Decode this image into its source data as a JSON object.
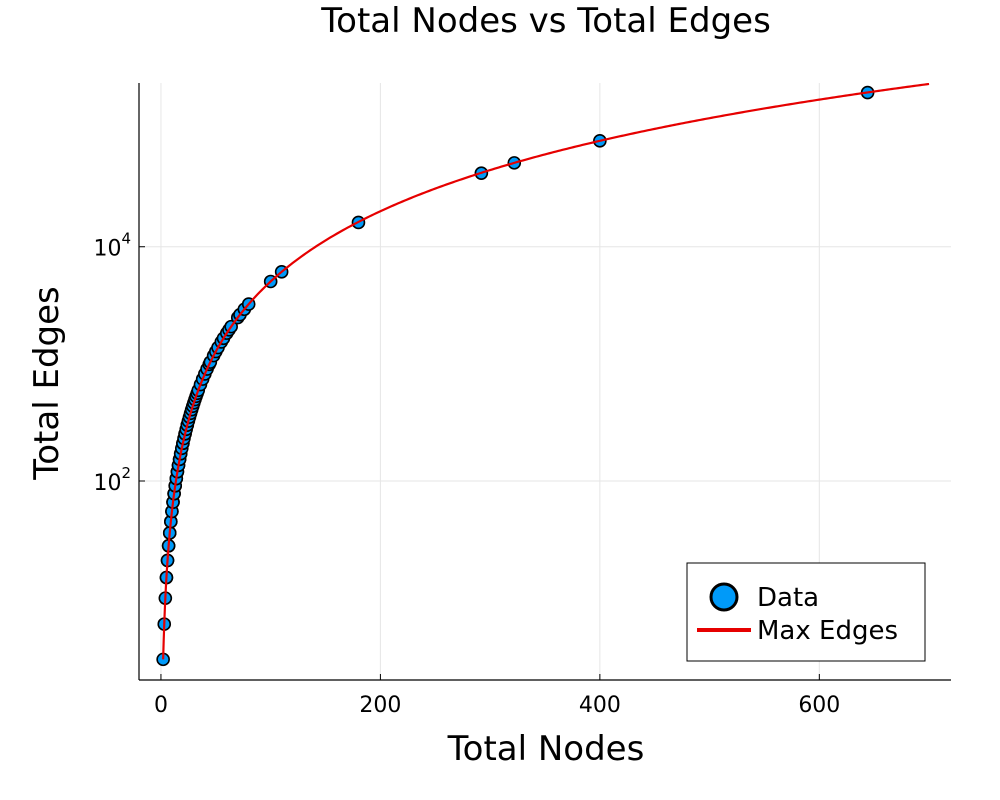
{
  "chart_data": {
    "type": "scatter",
    "title": "Total Nodes vs Total Edges",
    "xlabel": "Total Nodes",
    "ylabel": "Total Edges",
    "xlim": [
      -20,
      720
    ],
    "ylim": [
      2,
      250000
    ],
    "yscale": "log10",
    "grid": true,
    "legend_position": "bottom-right",
    "x_ticks": [
      {
        "value": 0,
        "label": "0"
      },
      {
        "value": 200,
        "label": "200"
      },
      {
        "value": 400,
        "label": "400"
      },
      {
        "value": 600,
        "label": "600"
      }
    ],
    "y_ticks": [
      {
        "value": 100,
        "base": "10",
        "exp": "2"
      },
      {
        "value": 10000,
        "base": "10",
        "exp": "4"
      }
    ],
    "series": [
      {
        "name": "Data",
        "kind": "scatter",
        "color": "#009af9",
        "edge_color": "#000000",
        "x": [
          2,
          3,
          4,
          5,
          5,
          6,
          6,
          7,
          7,
          8,
          8,
          9,
          9,
          10,
          10,
          11,
          11,
          12,
          12,
          13,
          13,
          14,
          14,
          15,
          15,
          16,
          16,
          17,
          17,
          18,
          18,
          19,
          20,
          20,
          21,
          22,
          22,
          23,
          24,
          24,
          25,
          26,
          27,
          28,
          29,
          30,
          31,
          32,
          33,
          34,
          36,
          38,
          40,
          42,
          44,
          45,
          48,
          50,
          52,
          55,
          57,
          60,
          62,
          64,
          70,
          72,
          76,
          80,
          100,
          110,
          180,
          292,
          322,
          400,
          644
        ],
        "y": [
          3,
          6,
          10,
          15,
          15,
          21,
          21,
          28,
          28,
          36,
          36,
          45,
          45,
          55,
          55,
          66,
          66,
          78,
          78,
          91,
          91,
          105,
          105,
          120,
          120,
          136,
          136,
          153,
          153,
          171,
          171,
          190,
          210,
          210,
          231,
          253,
          253,
          276,
          300,
          300,
          325,
          351,
          378,
          406,
          435,
          465,
          496,
          528,
          561,
          595,
          666,
          741,
          820,
          903,
          990,
          1035,
          1176,
          1275,
          1378,
          1540,
          1653,
          1830,
          1953,
          2080,
          2485,
          2628,
          2926,
          3240,
          5050,
          6105,
          16110,
          42486,
          52003,
          80200,
          207046
        ]
      },
      {
        "name": "Max Edges",
        "kind": "line",
        "color": "#e60000",
        "formula": "n*(n+1)/2",
        "x_range": [
          2,
          700
        ]
      }
    ]
  }
}
